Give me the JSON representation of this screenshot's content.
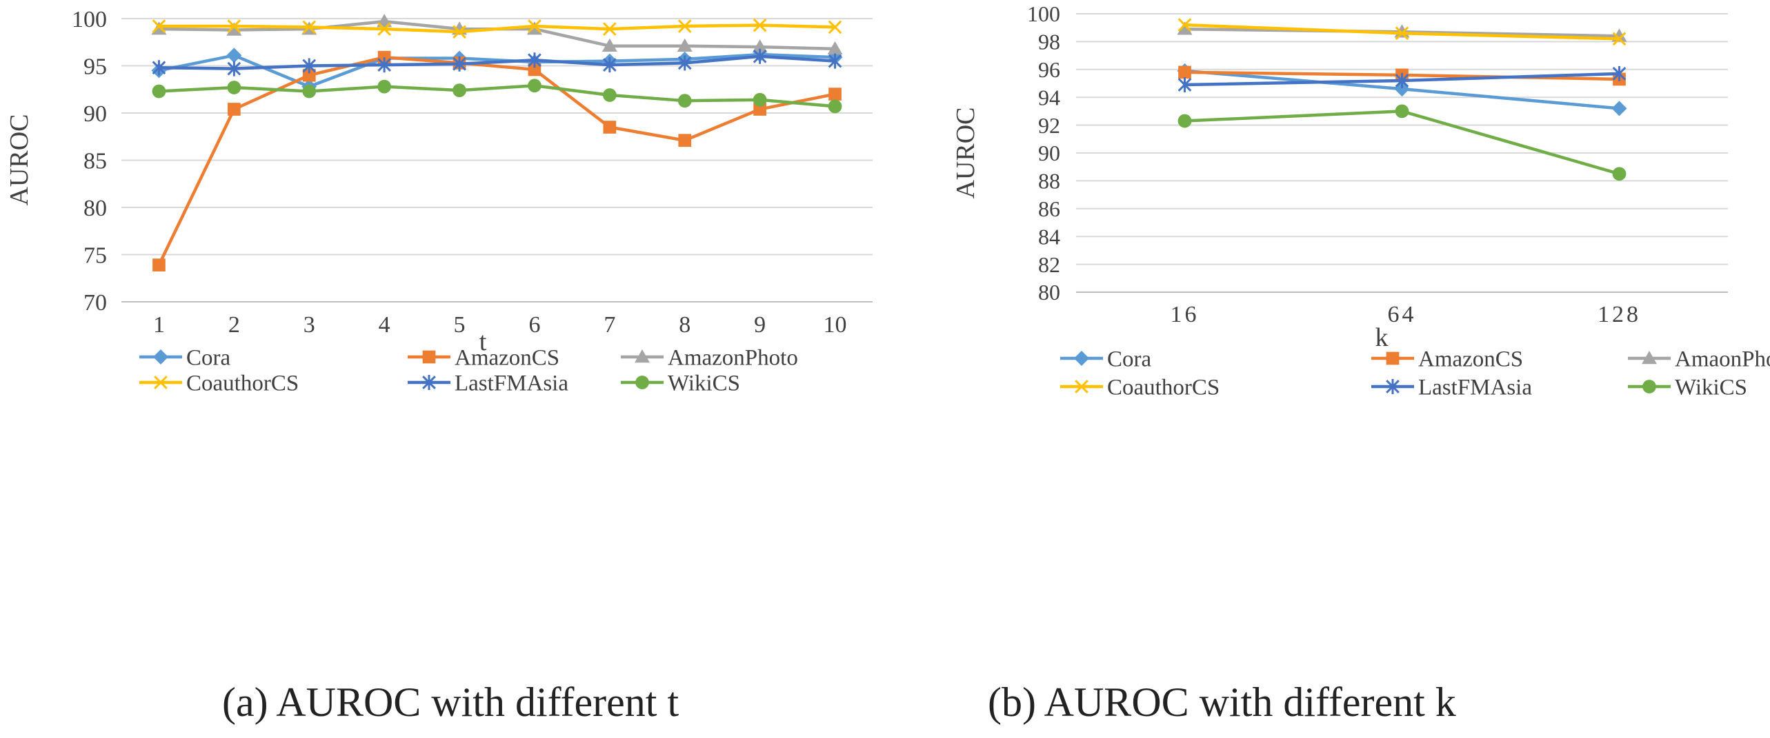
{
  "chart_data": [
    {
      "type": "line",
      "caption": "(a) AUROC with different t",
      "xlabel": "t",
      "ylabel": "AUROC",
      "categories": [
        "1",
        "2",
        "3",
        "4",
        "5",
        "6",
        "7",
        "8",
        "9",
        "10"
      ],
      "ylim": [
        70,
        100
      ],
      "yticks": [
        "70",
        "75",
        "80",
        "85",
        "90",
        "95",
        "100"
      ],
      "grid": true,
      "legend_position": "bottom",
      "series": [
        {
          "name": "Cora",
          "color": "#5B9BD5",
          "marker": "diamond",
          "values": [
            94.5,
            96.1,
            92.8,
            95.8,
            95.8,
            95.4,
            95.5,
            95.7,
            96.2,
            95.9
          ]
        },
        {
          "name": "AmazonCS",
          "color": "#ED7D31",
          "marker": "square",
          "values": [
            73.9,
            90.4,
            94.0,
            95.9,
            95.3,
            94.6,
            88.5,
            87.1,
            90.4,
            92.0
          ]
        },
        {
          "name": "AmazonPhoto",
          "color": "#A5A5A5",
          "marker": "triangle",
          "values": [
            98.9,
            98.8,
            98.9,
            99.7,
            98.9,
            98.9,
            97.1,
            97.1,
            97.0,
            96.8
          ]
        },
        {
          "name": "CoauthorCS",
          "color": "#FFC000",
          "marker": "x",
          "values": [
            99.2,
            99.2,
            99.1,
            98.9,
            98.6,
            99.2,
            98.9,
            99.2,
            99.3,
            99.1
          ]
        },
        {
          "name": "LastFMAsia",
          "color": "#4472C4",
          "marker": "star",
          "values": [
            94.8,
            94.7,
            95.0,
            95.1,
            95.2,
            95.6,
            95.1,
            95.3,
            96.0,
            95.5
          ]
        },
        {
          "name": "WikiCS",
          "color": "#70AD47",
          "marker": "circle",
          "values": [
            92.3,
            92.7,
            92.3,
            92.8,
            92.4,
            92.9,
            91.9,
            91.3,
            91.4,
            90.7
          ]
        }
      ]
    },
    {
      "type": "line",
      "caption": "(b) AUROC with different k",
      "xlabel": "k",
      "ylabel": "AUROC",
      "categories": [
        "16",
        "64",
        "128"
      ],
      "ylim": [
        80,
        100
      ],
      "yticks": [
        "80",
        "82",
        "84",
        "86",
        "88",
        "90",
        "92",
        "94",
        "96",
        "98",
        "100"
      ],
      "grid": true,
      "legend_position": "bottom",
      "series": [
        {
          "name": "Cora",
          "color": "#5B9BD5",
          "marker": "diamond",
          "values": [
            95.9,
            94.6,
            93.2
          ]
        },
        {
          "name": "AmazonCS",
          "color": "#ED7D31",
          "marker": "square",
          "values": [
            95.8,
            95.6,
            95.3
          ]
        },
        {
          "name": "AmaonPhoto",
          "color": "#A5A5A5",
          "marker": "triangle",
          "values": [
            98.9,
            98.7,
            98.4
          ]
        },
        {
          "name": "CoauthorCS",
          "color": "#FFC000",
          "marker": "x",
          "values": [
            99.2,
            98.6,
            98.2
          ]
        },
        {
          "name": "LastFMAsia",
          "color": "#4472C4",
          "marker": "star",
          "values": [
            94.9,
            95.2,
            95.7
          ]
        },
        {
          "name": "WikiCS",
          "color": "#70AD47",
          "marker": "circle",
          "values": [
            92.3,
            93.0,
            88.5
          ]
        }
      ]
    }
  ]
}
